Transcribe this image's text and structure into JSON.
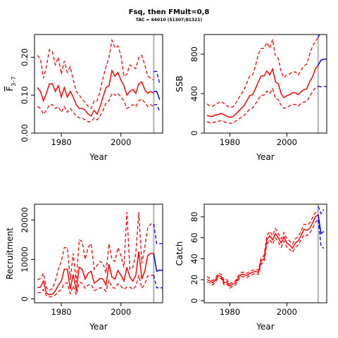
{
  "figure": {
    "title": "Fsq, then FMult=0,8",
    "subtitle": "TAC = 64010 (51307;81321)"
  },
  "colors": {
    "history": "#ff0000",
    "projection": "#0000ff",
    "divider": "#bebebe"
  },
  "chart_data": [
    {
      "type": "line",
      "name": "F",
      "xlabel": "Year",
      "ylabel_main": "F",
      "ylabel_sub": "3–7",
      "xlim": [
        1971,
        2014
      ],
      "ylim": [
        0,
        0.26
      ],
      "xticks": [
        1980,
        2000
      ],
      "yticks": [
        0.0,
        0.1,
        0.2
      ],
      "ytick_labels": [
        "0.00",
        "0.10",
        "0.20"
      ],
      "divider_x": 2011,
      "history": {
        "x": [
          1972,
          1973,
          1974,
          1975,
          1976,
          1977,
          1978,
          1979,
          1980,
          1981,
          1982,
          1983,
          1984,
          1985,
          1986,
          1987,
          1988,
          1989,
          1990,
          1991,
          1992,
          1993,
          1994,
          1995,
          1996,
          1997,
          1998,
          1999,
          2000,
          2001,
          2002,
          2003,
          2004,
          2005,
          2006,
          2007,
          2008,
          2009,
          2010,
          2011
        ],
        "mid": [
          0.12,
          0.11,
          0.085,
          0.105,
          0.13,
          0.13,
          0.11,
          0.125,
          0.095,
          0.12,
          0.095,
          0.11,
          0.095,
          0.075,
          0.065,
          0.065,
          0.06,
          0.05,
          0.045,
          0.06,
          0.05,
          0.07,
          0.095,
          0.12,
          0.125,
          0.165,
          0.15,
          0.16,
          0.14,
          0.125,
          0.1,
          0.11,
          0.115,
          0.105,
          0.13,
          0.135,
          0.115,
          0.105,
          0.11,
          0.105
        ],
        "upper": [
          0.205,
          0.195,
          0.145,
          0.175,
          0.22,
          0.215,
          0.18,
          0.2,
          0.155,
          0.19,
          0.16,
          0.175,
          0.14,
          0.11,
          0.1,
          0.09,
          0.08,
          0.07,
          0.065,
          0.085,
          0.085,
          0.11,
          0.145,
          0.175,
          0.2,
          0.245,
          0.225,
          0.23,
          0.205,
          0.15,
          0.155,
          0.18,
          0.175,
          0.17,
          0.2,
          0.205,
          0.18,
          0.15,
          0.145,
          0.14
        ],
        "lower": [
          0.07,
          0.065,
          0.05,
          0.06,
          0.075,
          0.075,
          0.065,
          0.07,
          0.055,
          0.07,
          0.055,
          0.065,
          0.055,
          0.045,
          0.04,
          0.04,
          0.035,
          0.03,
          0.03,
          0.04,
          0.035,
          0.045,
          0.06,
          0.08,
          0.085,
          0.105,
          0.1,
          0.105,
          0.095,
          0.085,
          0.065,
          0.07,
          0.075,
          0.07,
          0.085,
          0.09,
          0.08,
          0.07,
          0.075,
          0.07
        ]
      },
      "projection": {
        "x": [
          2011,
          2012,
          2013
        ],
        "mid": [
          0.11,
          0.11,
          0.088
        ],
        "upper": [
          0.162,
          0.163,
          0.13
        ],
        "lower": [
          0.075,
          0.075,
          0.058
        ]
      }
    },
    {
      "type": "line",
      "name": "SSB",
      "xlabel": "Year",
      "ylabel": "SSB",
      "xlim": [
        1971,
        2014
      ],
      "ylim": [
        0,
        1000
      ],
      "xticks": [
        1980,
        2000
      ],
      "yticks": [
        0,
        400,
        800
      ],
      "ytick_labels": [
        "0",
        "400",
        "800"
      ],
      "divider_x": 2011,
      "history": {
        "x": [
          1972,
          1973,
          1974,
          1975,
          1976,
          1977,
          1978,
          1979,
          1980,
          1981,
          1982,
          1983,
          1984,
          1985,
          1986,
          1987,
          1988,
          1989,
          1990,
          1991,
          1992,
          1993,
          1994,
          1995,
          1996,
          1997,
          1998,
          1999,
          2000,
          2001,
          2002,
          2003,
          2004,
          2005,
          2006,
          2007,
          2008,
          2009,
          2010,
          2011
        ],
        "mid": [
          180,
          170,
          170,
          185,
          190,
          200,
          185,
          170,
          160,
          165,
          190,
          220,
          250,
          280,
          330,
          380,
          390,
          450,
          520,
          580,
          580,
          630,
          590,
          650,
          520,
          500,
          400,
          360,
          380,
          390,
          410,
          410,
          390,
          420,
          440,
          450,
          520,
          570,
          650,
          690
        ],
        "upper": [
          295,
          275,
          270,
          295,
          305,
          320,
          300,
          275,
          260,
          265,
          300,
          350,
          395,
          440,
          510,
          580,
          590,
          680,
          800,
          860,
          860,
          920,
          860,
          950,
          780,
          760,
          620,
          560,
          590,
          600,
          620,
          620,
          590,
          640,
          680,
          700,
          800,
          880,
          930,
          970
        ],
        "lower": [
          115,
          105,
          105,
          115,
          120,
          125,
          115,
          105,
          100,
          100,
          120,
          140,
          160,
          180,
          210,
          245,
          255,
          295,
          345,
          385,
          385,
          425,
          400,
          450,
          350,
          340,
          280,
          250,
          265,
          275,
          290,
          290,
          275,
          300,
          315,
          320,
          370,
          420,
          460,
          475
        ]
      },
      "projection": {
        "x": [
          2011,
          2012,
          2013,
          2014
        ],
        "mid": [
          690,
          740,
          750,
          750
        ],
        "upper": [
          970,
          1030,
          1050,
          1060
        ],
        "lower": [
          475,
          470,
          475,
          470
        ]
      }
    },
    {
      "type": "line",
      "name": "Recruitment",
      "xlabel": "Year",
      "ylabel": "Recruitment",
      "xlim": [
        1971,
        2014
      ],
      "ylim": [
        -1000,
        24000
      ],
      "xticks": [
        1980,
        2000
      ],
      "yticks": [
        0,
        10000,
        20000
      ],
      "ytick_labels": [
        "0",
        "10000",
        "20000"
      ],
      "divider_x": 2011,
      "history": {
        "x": [
          1972,
          1973,
          1974,
          1975,
          1976,
          1977,
          1978,
          1979,
          1980,
          1981,
          1982,
          1983,
          1984,
          1985,
          1986,
          1987,
          1988,
          1989,
          1990,
          1991,
          1992,
          1993,
          1994,
          1995,
          1996,
          1997,
          1998,
          1999,
          2000,
          2001,
          2002,
          2003,
          2004,
          2005,
          2006,
          2007,
          2008,
          2009,
          2010,
          2011
        ],
        "mid": [
          2800,
          3000,
          4500,
          1500,
          1000,
          1200,
          2000,
          3500,
          4500,
          7500,
          7500,
          2500,
          6200,
          2000,
          8000,
          7500,
          5000,
          6500,
          7000,
          4000,
          4500,
          5200,
          5000,
          3500,
          8800,
          5500,
          5000,
          7200,
          6000,
          4500,
          8000,
          5500,
          4500,
          6000,
          12000,
          5000,
          7000,
          11000,
          11500,
          11500
        ],
        "upper": [
          4800,
          5200,
          6500,
          2800,
          2100,
          2600,
          4500,
          7500,
          9500,
          13000,
          13000,
          4800,
          11500,
          4200,
          15000,
          14500,
          10000,
          13000,
          14000,
          7500,
          8500,
          9500,
          9000,
          6500,
          14000,
          10000,
          9500,
          13000,
          11000,
          8000,
          22000,
          7500,
          8000,
          11500,
          22000,
          9000,
          13000,
          18000,
          19000,
          19000
        ],
        "lower": [
          1500,
          1600,
          2400,
          800,
          500,
          600,
          1000,
          1800,
          2300,
          4000,
          4000,
          1300,
          3300,
          1000,
          4200,
          4000,
          2700,
          3500,
          3700,
          2100,
          2400,
          2800,
          2700,
          1900,
          4700,
          2900,
          2700,
          3800,
          3200,
          2400,
          3000,
          3000,
          2400,
          3200,
          6000,
          2700,
          3700,
          5800,
          6000,
          6000
        ]
      },
      "projection": {
        "x": [
          2011,
          2012,
          2013,
          2014
        ],
        "mid": [
          11500,
          7000,
          7300,
          7200
        ],
        "upper": [
          19000,
          14000,
          14000,
          14000
        ],
        "lower": [
          6000,
          2800,
          2800,
          2800
        ]
      }
    },
    {
      "type": "line",
      "name": "Catch",
      "xlabel": "Year",
      "ylabel": "Catch",
      "xlim": [
        1971,
        2014
      ],
      "ylim": [
        -2,
        92
      ],
      "xticks": [
        1980,
        2000
      ],
      "yticks": [
        0,
        20,
        40,
        60,
        80
      ],
      "ytick_labels": [
        "0",
        "20",
        "40",
        "60",
        "80"
      ],
      "divider_x": 2011,
      "history": {
        "x": [
          1972,
          1973,
          1974,
          1975,
          1976,
          1977,
          1978,
          1979,
          1980,
          1981,
          1982,
          1983,
          1984,
          1985,
          1986,
          1987,
          1988,
          1989,
          1990,
          1991,
          1992,
          1993,
          1994,
          1995,
          1996,
          1997,
          1998,
          1999,
          2000,
          2001,
          2002,
          2003,
          2004,
          2005,
          2006,
          2007,
          2008,
          2009,
          2010,
          2011
        ],
        "mid": [
          20,
          19,
          17,
          20,
          24,
          23,
          17,
          18,
          14,
          16,
          17,
          22,
          25,
          25,
          24,
          26,
          27,
          28,
          27,
          38,
          40,
          58,
          62,
          58,
          64,
          60,
          55,
          61,
          55,
          53,
          50,
          55,
          57,
          62,
          68,
          67,
          69,
          74,
          80,
          82
        ],
        "upper": [
          23,
          21,
          19,
          22,
          26,
          25,
          19,
          20,
          16,
          18,
          19,
          24,
          27,
          27,
          26,
          28,
          29,
          30,
          29,
          41,
          43,
          62,
          66,
          62,
          69,
          64,
          59,
          65,
          59,
          57,
          54,
          59,
          61,
          66,
          73,
          72,
          74,
          79,
          84,
          86
        ],
        "lower": [
          18,
          17,
          15,
          18,
          22,
          21,
          15,
          16,
          12,
          14,
          15,
          20,
          23,
          23,
          22,
          24,
          25,
          26,
          25,
          35,
          37,
          54,
          58,
          54,
          60,
          56,
          51,
          57,
          51,
          49,
          46,
          51,
          53,
          58,
          63,
          62,
          64,
          69,
          75,
          77
        ]
      },
      "projection": {
        "x": [
          2011,
          2012,
          2013
        ],
        "mid": [
          82,
          64,
          66
        ],
        "upper": [
          90,
          83,
          87
        ],
        "lower": [
          77,
          52,
          50
        ]
      }
    }
  ]
}
